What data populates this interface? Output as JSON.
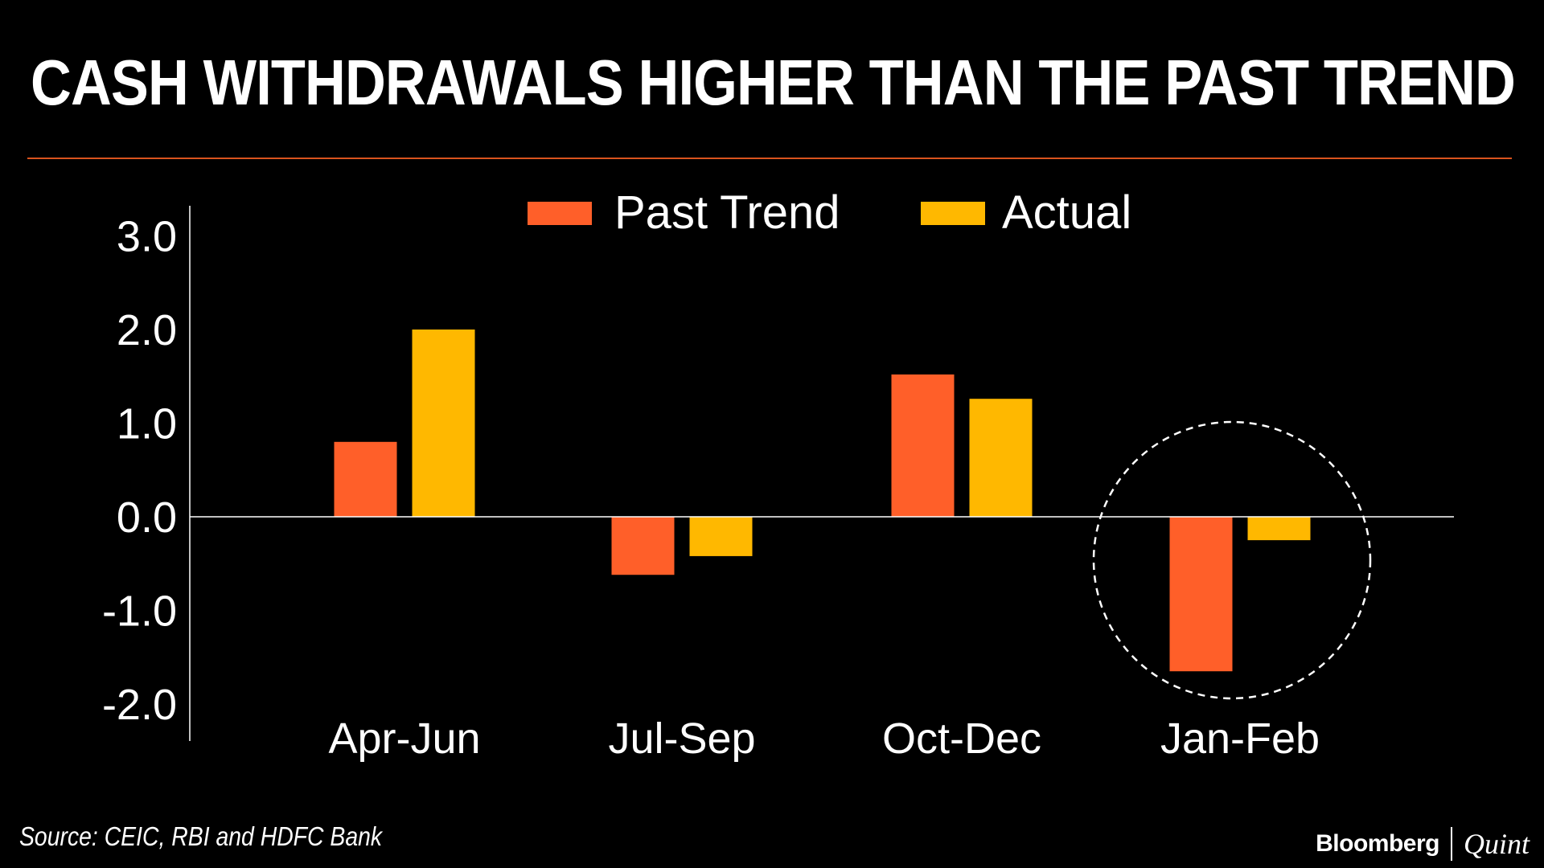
{
  "title": "CASH WITHDRAWALS HIGHER THAN THE PAST TREND",
  "source": "Source: CEIC, RBI and HDFC Bank",
  "brand": {
    "primary": "Bloomberg",
    "secondary": "Quint"
  },
  "colors": {
    "background": "#000000",
    "past_trend": "#ff5f29",
    "actual": "#ffb800",
    "rule": "#d9531e",
    "text": "#ffffff"
  },
  "chart_data": {
    "type": "bar",
    "title": "CASH WITHDRAWALS HIGHER THAN THE PAST TREND",
    "xlabel": "",
    "ylabel": "",
    "categories": [
      "Apr-Jun",
      "Jul-Sep",
      "Oct-Dec",
      "Jan-Feb"
    ],
    "series": [
      {
        "name": "Past Trend",
        "color": "#ff5f29",
        "values": [
          0.8,
          -0.62,
          1.52,
          -1.65
        ]
      },
      {
        "name": "Actual",
        "color": "#ffb800",
        "values": [
          2.0,
          -0.42,
          1.26,
          -0.25
        ]
      }
    ],
    "ylim": [
      -2.3,
      3.2
    ],
    "yticks": [
      3.0,
      2.0,
      1.0,
      0.0,
      -1.0,
      -2.0
    ],
    "ytick_labels": [
      "3.0",
      "2.0",
      "1.0",
      "0.0",
      "-1.0",
      "-2.0"
    ],
    "legend_position": "top-center",
    "grid": false,
    "highlight": {
      "category": "Jan-Feb",
      "style": "dashed-circle"
    }
  }
}
